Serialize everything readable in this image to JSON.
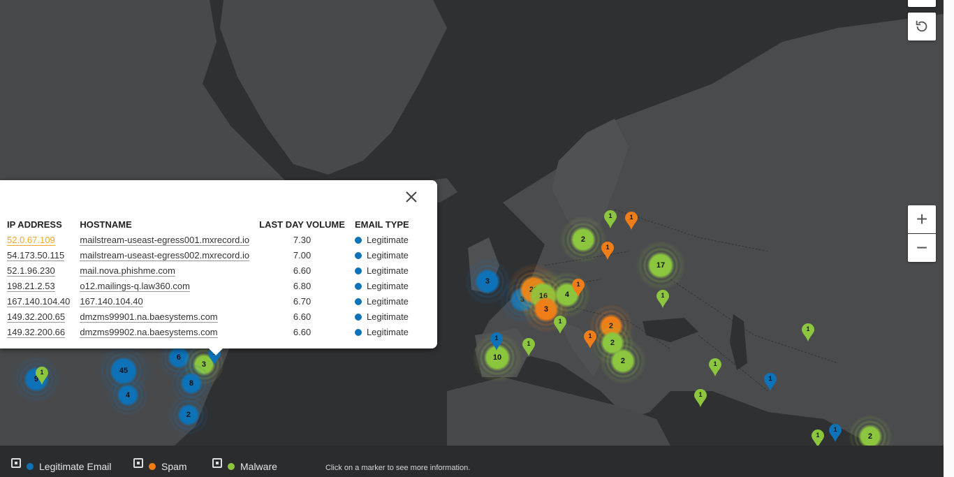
{
  "popup": {
    "headers": [
      "IP ADDRESS",
      "HOSTNAME",
      "LAST DAY VOLUME",
      "EMAIL TYPE"
    ],
    "rows": [
      {
        "ip": "52.0.67.109",
        "host": "mailstream-useast-egress001.mxrecord.io",
        "volume": "7.30",
        "type": "Legitimate"
      },
      {
        "ip": "54.173.50.115",
        "host": "mailstream-useast-egress002.mxrecord.io",
        "volume": "7.00",
        "type": "Legitimate"
      },
      {
        "ip": "52.1.96.230",
        "host": "mail.nova.phishme.com",
        "volume": "6.60",
        "type": "Legitimate"
      },
      {
        "ip": "198.21.2.53",
        "host": "o12.mailings-q.law360.com",
        "volume": "6.80",
        "type": "Legitimate"
      },
      {
        "ip": "167.140.104.40",
        "host": "167.140.104.40",
        "volume": "6.70",
        "type": "Legitimate"
      },
      {
        "ip": "149.32.200.65",
        "host": "dmzms99901.na.baesystems.com",
        "volume": "6.60",
        "type": "Legitimate"
      },
      {
        "ip": "149.32.200.66",
        "host": "dmzms99902.na.baesystems.com",
        "volume": "6.60",
        "type": "Legitimate"
      }
    ],
    "close_icon": "close-icon"
  },
  "colors": {
    "legitimate": "#0d72b8",
    "spam": "#f07d17",
    "malware": "#8cc63f",
    "link": "#f5a623"
  },
  "legend": {
    "items": [
      {
        "label": "Legitimate Email",
        "color": "#0d72b8"
      },
      {
        "label": "Spam",
        "color": "#f07d17"
      },
      {
        "label": "Malware",
        "color": "#8cc63f"
      }
    ],
    "hint": "Click on a marker to see more information."
  },
  "controls": {
    "zoom_in": "+",
    "zoom_out": "−",
    "reset_icon": "reset-view-icon"
  },
  "markers": {
    "clusters": [
      {
        "label": "9",
        "type": "legitimate"
      },
      {
        "label": "45",
        "type": "legitimate"
      },
      {
        "label": "4",
        "type": "legitimate"
      },
      {
        "label": "6",
        "type": "legitimate"
      },
      {
        "label": "3",
        "type": "malware"
      },
      {
        "label": "8",
        "type": "legitimate"
      },
      {
        "label": "2",
        "type": "legitimate"
      },
      {
        "label": "3",
        "type": "legitimate"
      },
      {
        "label": "3",
        "type": "legitimate"
      },
      {
        "label": "22",
        "type": "spam"
      },
      {
        "label": "16",
        "type": "malware"
      },
      {
        "label": "3",
        "type": "spam"
      },
      {
        "label": "4",
        "type": "malware"
      },
      {
        "label": "2",
        "type": "malware"
      },
      {
        "label": "17",
        "type": "malware"
      },
      {
        "label": "10",
        "type": "malware"
      },
      {
        "label": "2",
        "type": "spam"
      },
      {
        "label": "2",
        "type": "malware"
      },
      {
        "label": "2",
        "type": "malware"
      },
      {
        "label": "2",
        "type": "malware"
      }
    ],
    "pins": [
      {
        "label": "1",
        "type": "malware"
      },
      {
        "label": "1",
        "type": "spam"
      },
      {
        "label": "1",
        "type": "spam"
      },
      {
        "label": "1",
        "type": "spam"
      },
      {
        "label": "1",
        "type": "malware"
      },
      {
        "label": "1",
        "type": "malware"
      },
      {
        "label": "1",
        "type": "malware"
      },
      {
        "label": "1",
        "type": "legitimate"
      },
      {
        "label": "1",
        "type": "spam"
      },
      {
        "label": "1",
        "type": "malware"
      },
      {
        "label": "1",
        "type": "malware"
      },
      {
        "label": "1",
        "type": "malware"
      },
      {
        "label": "1",
        "type": "legitimate"
      },
      {
        "label": "1",
        "type": "malware"
      },
      {
        "label": "1",
        "type": "legitimate"
      },
      {
        "label": "1",
        "type": "malware"
      },
      {
        "label": "1",
        "type": "legitimate"
      }
    ]
  }
}
